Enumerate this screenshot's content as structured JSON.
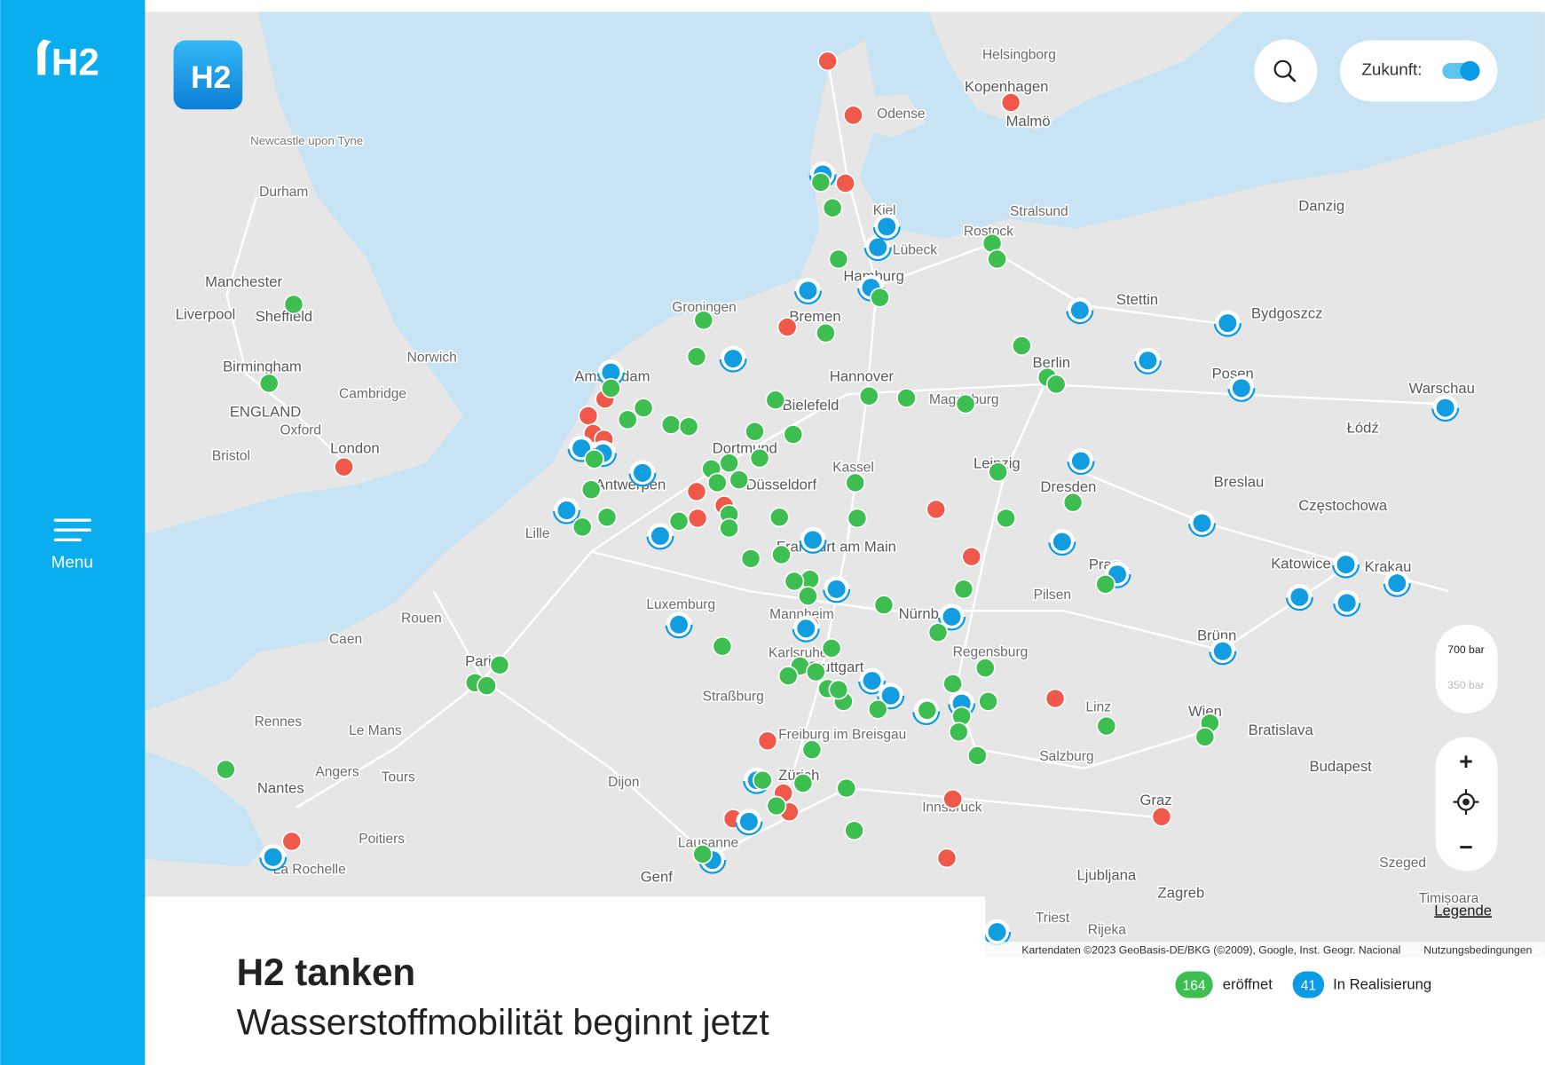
{
  "sidebar": {
    "logo": "H2",
    "menu": "Menu"
  },
  "map": {
    "labels": [
      "Manchester",
      "Liverpool",
      "Sheffield",
      "Birmingham",
      "ENGLAND",
      "London",
      "Norwich",
      "Cambridge",
      "Oxford",
      "Bristol",
      "Newcastle upon Tyne",
      "Durham",
      "Amsterdam",
      "Bremen",
      "Hamburg",
      "Hannover",
      "Bielefeld",
      "Dortmund",
      "Düsseldorf",
      "Kassel",
      "Magdeburg",
      "Berlin",
      "Leipzig",
      "Dresden",
      "Kopenhagen",
      "Malmö",
      "Odense",
      "Helsingborg",
      "Rostock",
      "Stralsund",
      "Stettin",
      "Danzig",
      "Bydgoszcz",
      "Posen",
      "Warschau",
      "Łódź",
      "Breslau",
      "Częstochowa",
      "Katowice",
      "Krakau",
      "Brünn",
      "Wien",
      "Bratislava",
      "Budapest",
      "Graz",
      "Linz",
      "Salzburg",
      "Regensburg",
      "Innsbruck",
      "Ljubljana",
      "Zagreb",
      "Luxemburg",
      "Frankfurt am Main",
      "Mannheim",
      "Karlsruhe",
      "Stuttgart",
      "Straßburg",
      "Zürich",
      "Genf",
      "Lausanne",
      "Dijon",
      "Paris",
      "Rouen",
      "Caen",
      "Rennes",
      "Le Mans",
      "Tours",
      "Angers",
      "Nantes",
      "Poitiers",
      "La Rochelle",
      "Groningen",
      "Kiel",
      "Lübeck",
      "Lille",
      "Antwerpen",
      "Prag",
      "Pilsen",
      "Nürnberg",
      "Freiburg im Breisgau",
      "Triest",
      "Rijeka",
      "Timișoara",
      "Szeged"
    ]
  },
  "controls": {
    "toggle_label": "Zukunft:",
    "pressure": [
      "700 bar",
      "350 bar"
    ],
    "zoom_in": "+",
    "zoom_out": "−",
    "legend_link": "Legende"
  },
  "attribution": {
    "data": "Kartendaten ©2023 GeoBasis-DE/BKG (©2009), Google, Inst. Geogr. Nacional",
    "terms": "Nutzungsbedingungen"
  },
  "footer": {
    "title": "H2 tanken",
    "subtitle": "Wasserstoffmobilität beginnt jetzt"
  },
  "legend": [
    {
      "count": 164,
      "label": "eröffnet"
    },
    {
      "count": 41,
      "label": "In Realisierung"
    }
  ]
}
